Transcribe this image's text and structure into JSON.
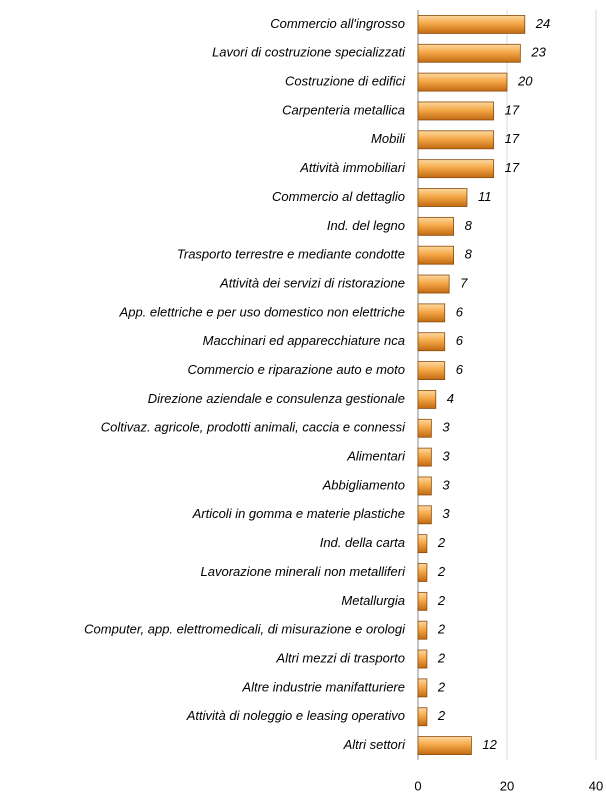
{
  "chart_data": {
    "type": "bar",
    "orientation": "horizontal",
    "categories": [
      "Commercio all'ingrosso",
      "Lavori di costruzione specializzati",
      "Costruzione di edifici",
      "Carpenteria metallica",
      "Mobili",
      "Attività immobiliari",
      "Commercio al dettaglio",
      "Ind. del legno",
      "Trasporto terrestre e mediante condotte",
      "Attività dei servizi di ristorazione",
      "App. elettriche e per uso domestico non elettriche",
      "Macchinari ed apparecchiature nca",
      "Commercio e riparazione auto e moto",
      "Direzione aziendale e consulenza gestionale",
      "Coltivaz. agricole, prodotti animali, caccia e connessi",
      "Alimentari",
      "Abbigliamento",
      "Articoli in gomma e materie plastiche",
      "Ind. della carta",
      "Lavorazione minerali non metalliferi",
      "Metallurgia",
      "Computer, app. elettromedicali, di misurazione e orologi",
      "Altri mezzi di trasporto",
      "Altre industrie manifatturiere",
      "Attività di noleggio e leasing operativo",
      "Altri settori"
    ],
    "values": [
      24,
      23,
      20,
      17,
      17,
      17,
      11,
      8,
      8,
      7,
      6,
      6,
      6,
      4,
      3,
      3,
      3,
      3,
      2,
      2,
      2,
      2,
      2,
      2,
      2,
      12
    ],
    "color": "#f0a040",
    "xlim": [
      0,
      40
    ],
    "xticks": [
      0,
      20,
      40
    ],
    "grid": true
  }
}
